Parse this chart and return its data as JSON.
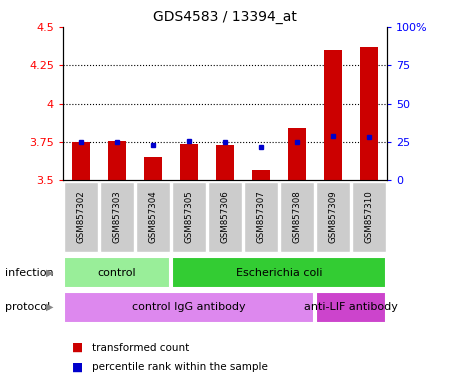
{
  "title": "GDS4583 / 13394_at",
  "samples": [
    "GSM857302",
    "GSM857303",
    "GSM857304",
    "GSM857305",
    "GSM857306",
    "GSM857307",
    "GSM857308",
    "GSM857309",
    "GSM857310"
  ],
  "red_values": [
    3.75,
    3.76,
    3.65,
    3.74,
    3.73,
    3.57,
    3.84,
    4.35,
    4.37
  ],
  "blue_values": [
    25,
    25,
    23,
    26,
    25,
    22,
    25,
    29,
    28
  ],
  "ylim_left": [
    3.5,
    4.5
  ],
  "ylim_right": [
    0,
    100
  ],
  "yticks_left": [
    3.5,
    3.75,
    4.0,
    4.25,
    4.5
  ],
  "yticks_right": [
    0,
    25,
    50,
    75,
    100
  ],
  "ytick_labels_left": [
    "3.5",
    "3.75",
    "4",
    "4.25",
    "4.5"
  ],
  "ytick_labels_right": [
    "0",
    "25",
    "50",
    "75",
    "100%"
  ],
  "dotted_lines": [
    3.75,
    4.0,
    4.25
  ],
  "bar_color": "#cc0000",
  "dot_color": "#0000cc",
  "bar_bottom": 3.5,
  "infection_labels": [
    {
      "text": "control",
      "start": 0,
      "end": 2,
      "color": "#99ee99"
    },
    {
      "text": "Escherichia coli",
      "start": 3,
      "end": 8,
      "color": "#33cc33"
    }
  ],
  "protocol_labels": [
    {
      "text": "control IgG antibody",
      "start": 0,
      "end": 6,
      "color": "#dd88ee"
    },
    {
      "text": "anti-LIF antibody",
      "start": 7,
      "end": 8,
      "color": "#cc44cc"
    }
  ],
  "infection_text": "infection",
  "protocol_text": "protocol",
  "legend_items": [
    {
      "color": "#cc0000",
      "label": "transformed count"
    },
    {
      "color": "#0000cc",
      "label": "percentile rank within the sample"
    }
  ],
  "sample_bg_color": "#cccccc",
  "title_fontsize": 10,
  "tick_fontsize": 8,
  "bar_width": 0.5
}
